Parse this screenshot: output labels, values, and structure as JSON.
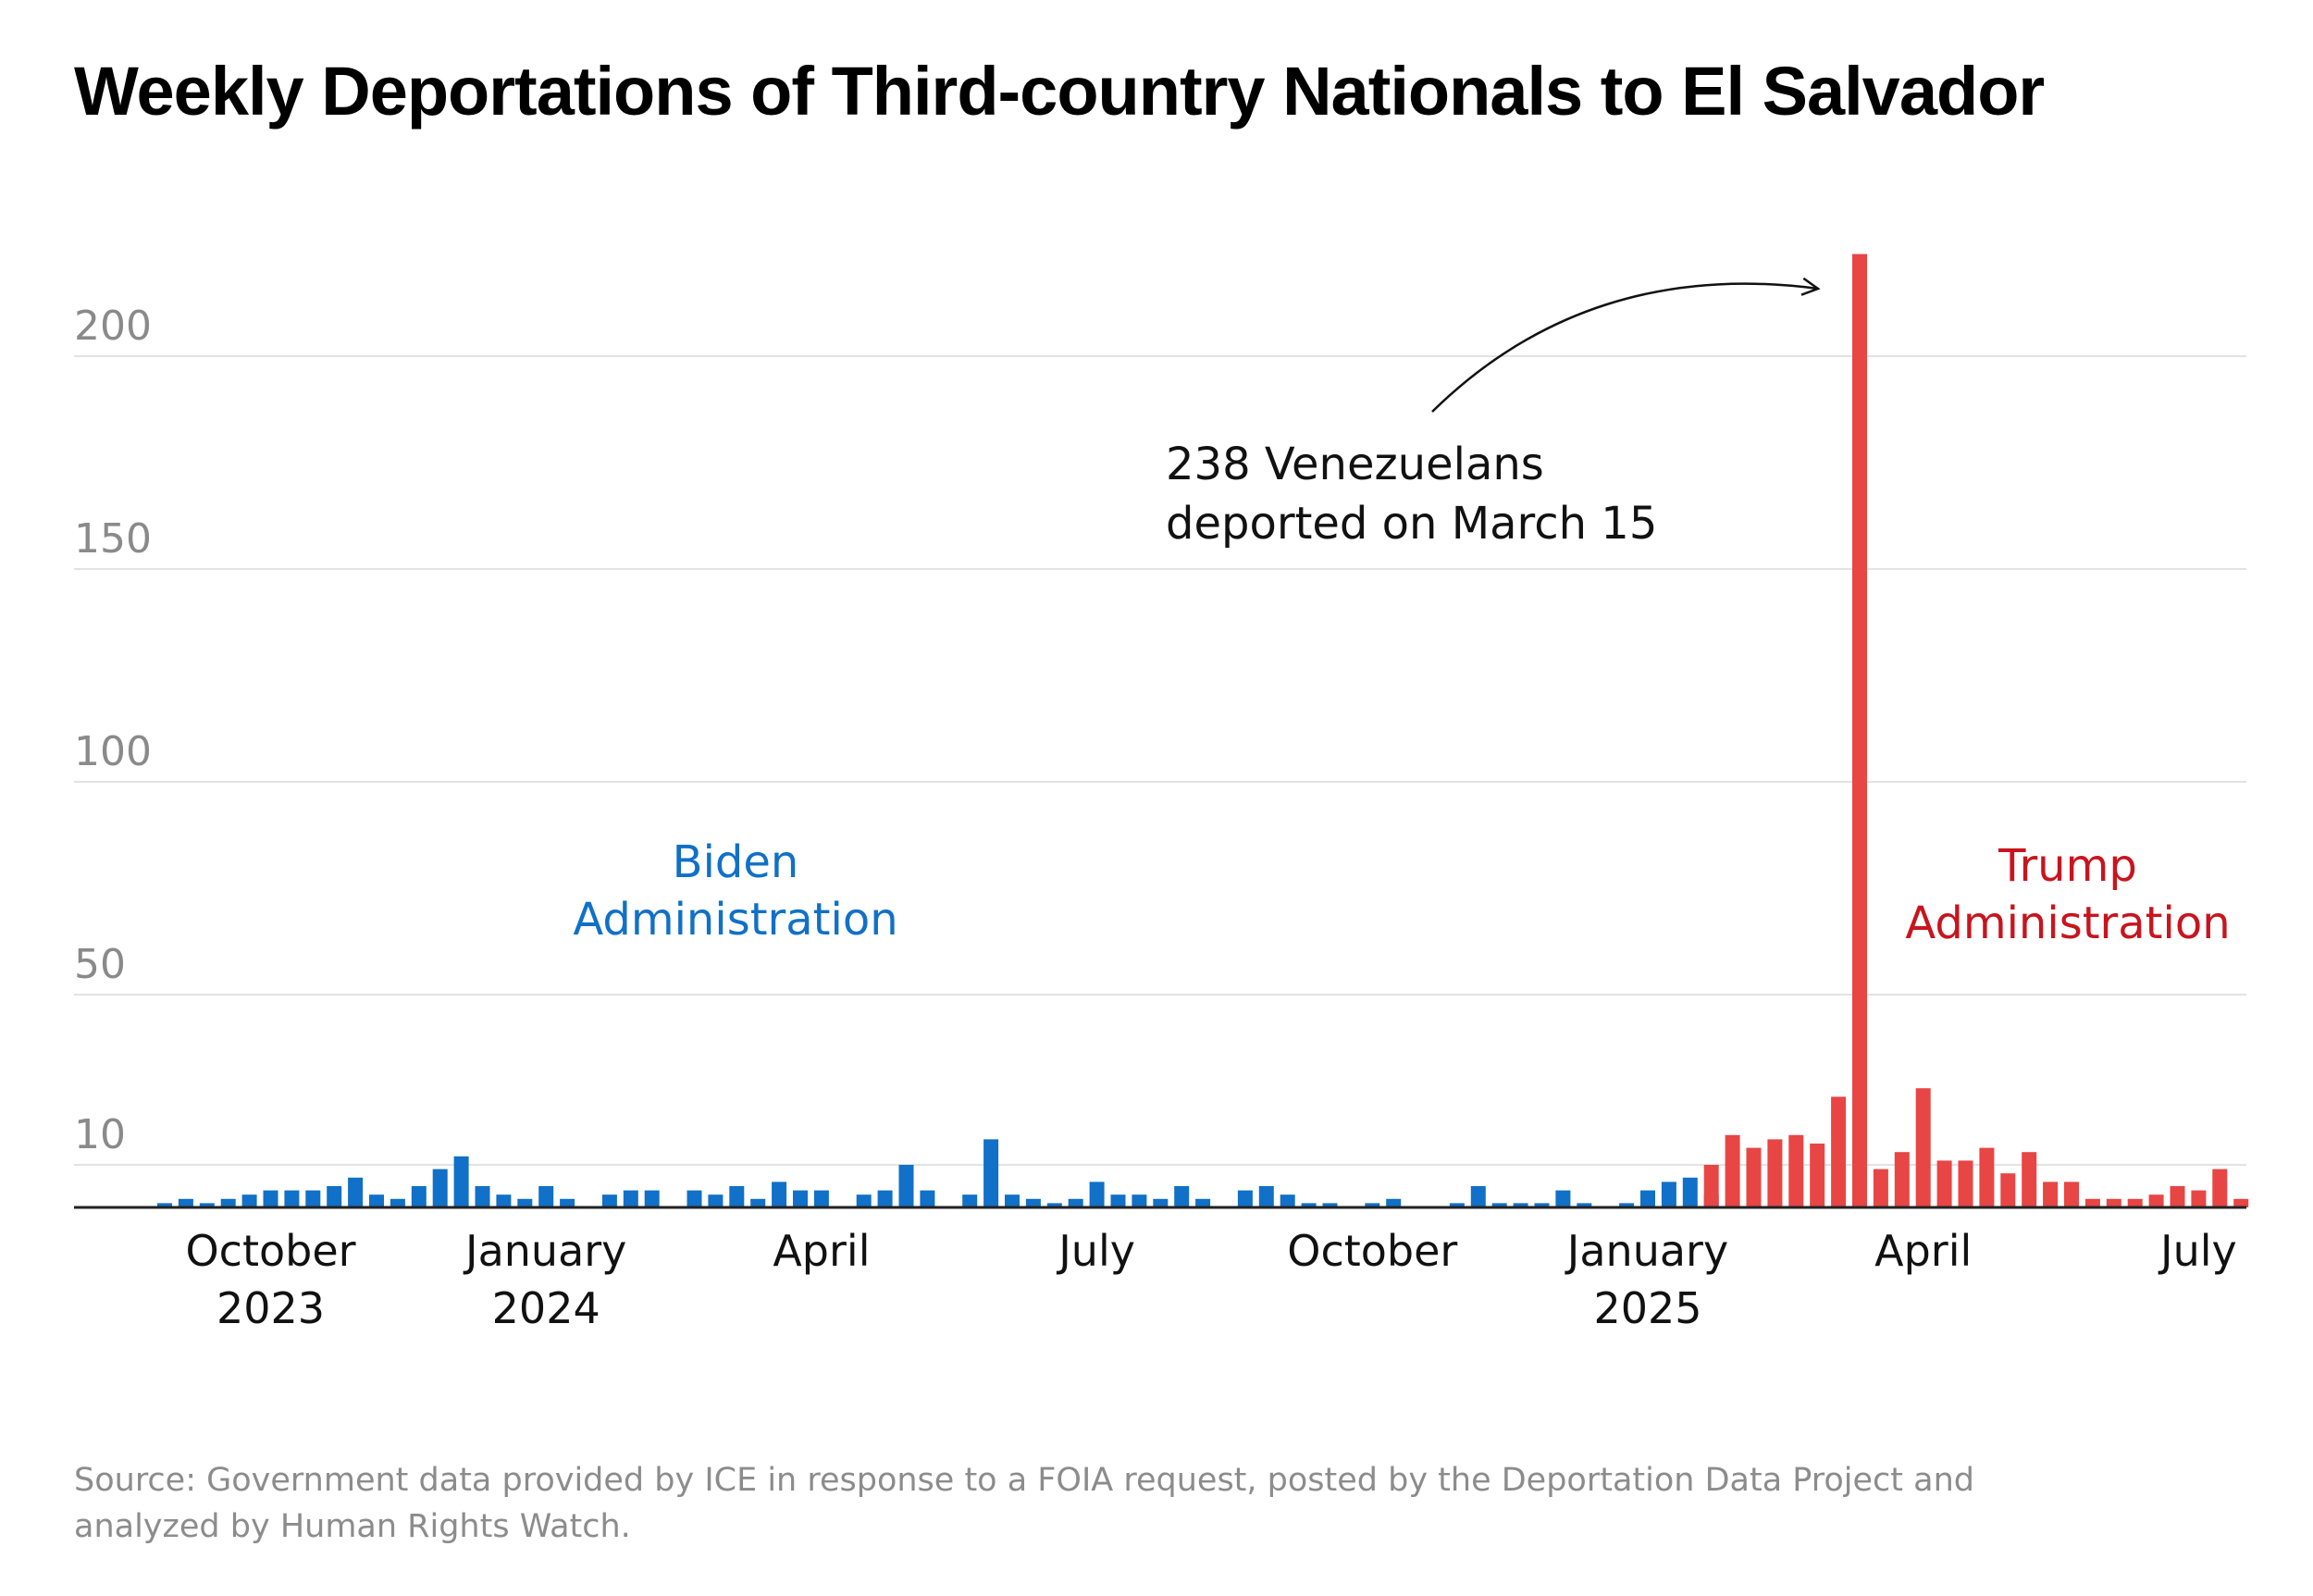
{
  "chart_data": {
    "type": "bar",
    "title": "Weekly Deportations of Third-country Nationals to El Salvador",
    "y_ticks": [
      "10",
      "50",
      "100",
      "150",
      "200"
    ],
    "ylim": [
      0,
      225
    ],
    "grid": true,
    "x_ticks": [
      {
        "line1": "October",
        "line2": "2023",
        "week": 5
      },
      {
        "line1": "January",
        "line2": "2024",
        "week": 18
      },
      {
        "line1": "April",
        "line2": "",
        "week": 31
      },
      {
        "line1": "July",
        "line2": "",
        "week": 44
      },
      {
        "line1": "October",
        "line2": "",
        "week": 57
      },
      {
        "line1": "January",
        "line2": "2025",
        "week": 70
      },
      {
        "line1": "April",
        "line2": "",
        "week": 83
      },
      {
        "line1": "July",
        "line2": "",
        "week": 96
      }
    ],
    "series": [
      {
        "name": "Biden Administration",
        "color": "#1170c7",
        "points": [
          {
            "week": 0,
            "value": 1
          },
          {
            "week": 1,
            "value": 2
          },
          {
            "week": 2,
            "value": 1
          },
          {
            "week": 3,
            "value": 2
          },
          {
            "week": 4,
            "value": 3
          },
          {
            "week": 5,
            "value": 4
          },
          {
            "week": 6,
            "value": 4
          },
          {
            "week": 7,
            "value": 4
          },
          {
            "week": 8,
            "value": 5
          },
          {
            "week": 9,
            "value": 7
          },
          {
            "week": 10,
            "value": 3
          },
          {
            "week": 11,
            "value": 2
          },
          {
            "week": 12,
            "value": 5
          },
          {
            "week": 13,
            "value": 9
          },
          {
            "week": 14,
            "value": 12
          },
          {
            "week": 15,
            "value": 5
          },
          {
            "week": 16,
            "value": 3
          },
          {
            "week": 17,
            "value": 2
          },
          {
            "week": 18,
            "value": 5
          },
          {
            "week": 19,
            "value": 2
          },
          {
            "week": 21,
            "value": 3
          },
          {
            "week": 22,
            "value": 4
          },
          {
            "week": 23,
            "value": 4
          },
          {
            "week": 25,
            "value": 4
          },
          {
            "week": 26,
            "value": 3
          },
          {
            "week": 27,
            "value": 5
          },
          {
            "week": 28,
            "value": 2
          },
          {
            "week": 29,
            "value": 6
          },
          {
            "week": 30,
            "value": 4
          },
          {
            "week": 31,
            "value": 4
          },
          {
            "week": 33,
            "value": 3
          },
          {
            "week": 34,
            "value": 4
          },
          {
            "week": 35,
            "value": 10
          },
          {
            "week": 36,
            "value": 4
          },
          {
            "week": 38,
            "value": 3
          },
          {
            "week": 39,
            "value": 16
          },
          {
            "week": 40,
            "value": 3
          },
          {
            "week": 41,
            "value": 2
          },
          {
            "week": 42,
            "value": 1
          },
          {
            "week": 43,
            "value": 2
          },
          {
            "week": 44,
            "value": 6
          },
          {
            "week": 45,
            "value": 3
          },
          {
            "week": 46,
            "value": 3
          },
          {
            "week": 47,
            "value": 2
          },
          {
            "week": 48,
            "value": 5
          },
          {
            "week": 49,
            "value": 2
          },
          {
            "week": 51,
            "value": 4
          },
          {
            "week": 52,
            "value": 5
          },
          {
            "week": 53,
            "value": 3
          },
          {
            "week": 54,
            "value": 1
          },
          {
            "week": 55,
            "value": 1
          },
          {
            "week": 57,
            "value": 1
          },
          {
            "week": 58,
            "value": 2
          },
          {
            "week": 61,
            "value": 1
          },
          {
            "week": 62,
            "value": 5
          },
          {
            "week": 63,
            "value": 1
          },
          {
            "week": 64,
            "value": 1
          },
          {
            "week": 65,
            "value": 1
          },
          {
            "week": 66,
            "value": 4
          },
          {
            "week": 67,
            "value": 1
          },
          {
            "week": 69,
            "value": 1
          },
          {
            "week": 70,
            "value": 4
          },
          {
            "week": 71,
            "value": 6
          },
          {
            "week": 72,
            "value": 7
          },
          {
            "week": 73,
            "value": 3
          }
        ]
      },
      {
        "name": "Trump Administration",
        "color": "#e84545",
        "points": [
          {
            "week": 73,
            "value": 10
          },
          {
            "week": 74,
            "value": 17
          },
          {
            "week": 75,
            "value": 14
          },
          {
            "week": 76,
            "value": 16
          },
          {
            "week": 77,
            "value": 17
          },
          {
            "week": 78,
            "value": 15
          },
          {
            "week": 79,
            "value": 26
          },
          {
            "week": 80,
            "value": 224
          },
          {
            "week": 81,
            "value": 9
          },
          {
            "week": 82,
            "value": 13
          },
          {
            "week": 83,
            "value": 28
          },
          {
            "week": 84,
            "value": 11
          },
          {
            "week": 85,
            "value": 11
          },
          {
            "week": 86,
            "value": 14
          },
          {
            "week": 87,
            "value": 8
          },
          {
            "week": 88,
            "value": 13
          },
          {
            "week": 89,
            "value": 6
          },
          {
            "week": 90,
            "value": 6
          },
          {
            "week": 91,
            "value": 2
          },
          {
            "week": 92,
            "value": 2
          },
          {
            "week": 93,
            "value": 2
          },
          {
            "week": 94,
            "value": 3
          },
          {
            "week": 95,
            "value": 5
          },
          {
            "week": 96,
            "value": 4
          },
          {
            "week": 97,
            "value": 9
          },
          {
            "week": 98,
            "value": 2
          }
        ]
      }
    ],
    "annotation": {
      "line1": "238 Venezuelans",
      "line2": "deported on March 15"
    },
    "admin_labels": {
      "biden": {
        "line1": "Biden",
        "line2": "Administration",
        "color": "#1170c7"
      },
      "trump": {
        "line1": "Trump",
        "line2": "Administration",
        "color": "#c8141e"
      }
    },
    "source": "Source: Government data provided by ICE in response to a FOIA request, posted by the Deportation Data Project and analyzed by Human Rights Watch."
  }
}
